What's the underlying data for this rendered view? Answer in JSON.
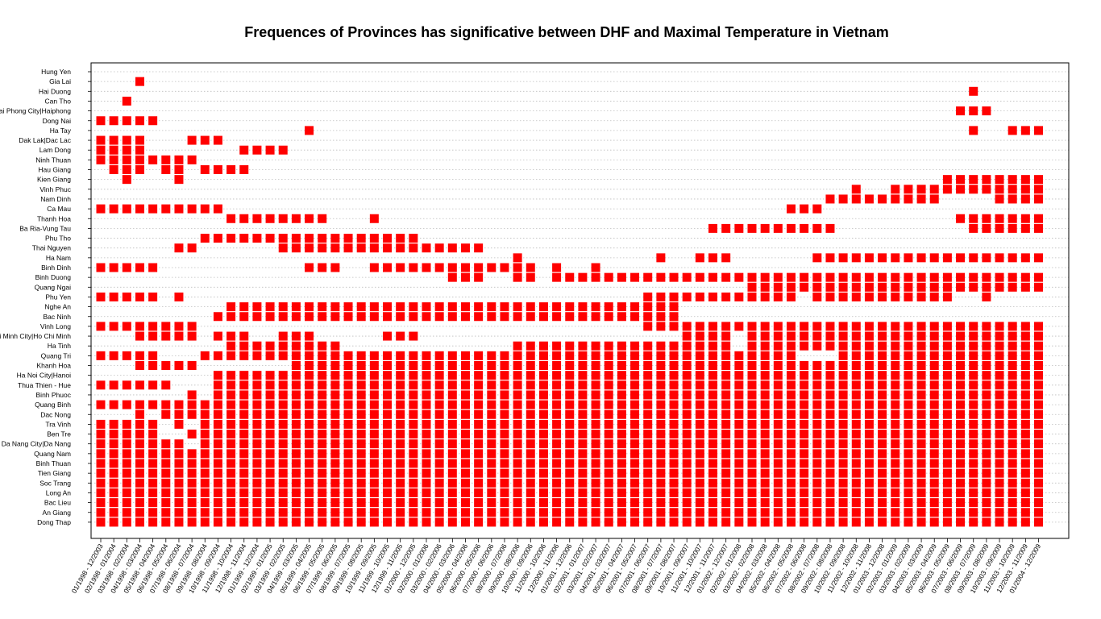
{
  "chart_data": {
    "type": "heatmap",
    "title": "Frequences of Provinces has significative between DHF and Maximal Temperature in Vietnam",
    "xlabel": "",
    "ylabel": "",
    "grid": true,
    "colors": {
      "mark": "#ff0000",
      "grid": "#bdbdbd",
      "axis": "#000000"
    },
    "y_categories": [
      "Hung Yen",
      "Gia Lai",
      "Hai Duong",
      "Can Tho",
      "Hai Phong City|Haiphong",
      "Dong Nai",
      "Ha Tay",
      "Dak Lak|Dac Lac",
      "Lam Dong",
      "Ninh Thuan",
      "Hau Giang",
      "Kien Giang",
      "Vinh Phuc",
      "Nam Dinh",
      "Ca Mau",
      "Thanh Hoa",
      "Ba Ria-Vung Tau",
      "Phu Tho",
      "Thai Nguyen",
      "Ha Nam",
      "Binh Dinh",
      "Binh Duong",
      "Quang Ngai",
      "Phu Yen",
      "Nghe An",
      "Bac Ninh",
      "Vinh Long",
      "Ho Chi Minh City|Ho Chi Minh",
      "Ha Tinh",
      "Quang Tri",
      "Khanh Hoa",
      "Ha Noi City|Hanoi",
      "Thua Thien - Hue",
      "Binh Phuoc",
      "Quang Binh",
      "Dac Nong",
      "Tra Vinh",
      "Ben Tre",
      "Da Nang City|Da Nang",
      "Quang Nam",
      "Binh Thuan",
      "Tien Giang",
      "Soc Trang",
      "Long An",
      "Bac Lieu",
      "An Giang",
      "Dong Thap"
    ],
    "x_categories": [
      "01/1998 - 12/2003",
      "02/1998 - 01/2004",
      "03/1998 - 02/2004",
      "04/1998 - 03/2004",
      "05/1998 - 04/2004",
      "06/1998 - 05/2004",
      "07/1998 - 06/2004",
      "08/1998 - 07/2004",
      "09/1998 - 08/2004",
      "10/1998 - 09/2004",
      "11/1998 - 10/2004",
      "12/1998 - 11/2004",
      "01/1999 - 12/2004",
      "02/1999 - 01/2005",
      "03/1999 - 02/2005",
      "04/1999 - 03/2005",
      "05/1999 - 04/2005",
      "06/1999 - 05/2005",
      "07/1999 - 06/2005",
      "08/1999 - 07/2005",
      "09/1999 - 08/2005",
      "10/1999 - 09/2005",
      "11/1999 - 10/2005",
      "12/1999 - 11/2005",
      "01/2000 - 12/2005",
      "02/2000 - 01/2006",
      "03/2000 - 02/2006",
      "04/2000 - 03/2006",
      "05/2000 - 04/2006",
      "06/2000 - 05/2006",
      "07/2000 - 06/2006",
      "08/2000 - 07/2006",
      "09/2000 - 08/2006",
      "10/2000 - 09/2006",
      "11/2000 - 10/2006",
      "12/2000 - 11/2006",
      "01/2001 - 12/2006",
      "02/2001 - 01/2007",
      "03/2001 - 02/2007",
      "04/2001 - 03/2007",
      "05/2001 - 04/2007",
      "06/2001 - 05/2007",
      "07/2001 - 06/2007",
      "08/2001 - 07/2007",
      "09/2001 - 08/2007",
      "10/2001 - 09/2007",
      "11/2001 - 10/2007",
      "12/2001 - 11/2007",
      "01/2002 - 12/2007",
      "02/2002 - 01/2008",
      "03/2002 - 02/2008",
      "04/2002 - 03/2008",
      "05/2002 - 04/2008",
      "06/2002 - 05/2008",
      "07/2002 - 06/2008",
      "08/2002 - 07/2008",
      "09/2002 - 08/2008",
      "10/2002 - 09/2008",
      "11/2002 - 10/2008",
      "12/2002 - 11/2008",
      "01/2003 - 12/2008",
      "02/2003 - 01/2009",
      "03/2003 - 02/2009",
      "04/2003 - 03/2009",
      "05/2003 - 04/2009",
      "06/2003 - 05/2009",
      "07/2003 - 06/2009",
      "08/2003 - 07/2009",
      "09/2003 - 08/2009",
      "10/2003 - 09/2009",
      "11/2003 - 10/2009",
      "12/2003 - 11/2009",
      "01/2004 - 12/2009"
    ],
    "cells": {
      "Gia Lai": [
        [
          3,
          3
        ]
      ],
      "Hai Duong": [
        [
          67,
          67
        ]
      ],
      "Can Tho": [
        [
          2,
          2
        ]
      ],
      "Hai Phong City|Haiphong": [
        [
          66,
          68
        ]
      ],
      "Dong Nai": [
        [
          0,
          4
        ]
      ],
      "Ha Tay": [
        [
          16,
          16
        ],
        [
          67,
          67
        ],
        [
          70,
          72
        ]
      ],
      "Dak Lak|Dac Lac": [
        [
          0,
          3
        ],
        [
          7,
          9
        ]
      ],
      "Lam Dong": [
        [
          0,
          3
        ],
        [
          11,
          14
        ]
      ],
      "Ninh Thuan": [
        [
          0,
          7
        ]
      ],
      "Hau Giang": [
        [
          1,
          3
        ],
        [
          5,
          6
        ],
        [
          8,
          11
        ]
      ],
      "Kien Giang": [
        [
          2,
          2
        ],
        [
          6,
          6
        ],
        [
          65,
          72
        ]
      ],
      "Vinh Phuc": [
        [
          58,
          58
        ],
        [
          61,
          64
        ],
        [
          65,
          72
        ]
      ],
      "Nam Dinh": [
        [
          56,
          64
        ],
        [
          69,
          72
        ]
      ],
      "Ca Mau": [
        [
          0,
          9
        ],
        [
          53,
          55
        ]
      ],
      "Thanh Hoa": [
        [
          10,
          17
        ],
        [
          21,
          21
        ],
        [
          66,
          66
        ],
        [
          67,
          72
        ]
      ],
      "Ba Ria-Vung Tau": [
        [
          47,
          56
        ],
        [
          67,
          72
        ]
      ],
      "Phu Tho": [
        [
          8,
          24
        ]
      ],
      "Thai Nguyen": [
        [
          6,
          7
        ],
        [
          14,
          29
        ]
      ],
      "Ha Nam": [
        [
          32,
          32
        ],
        [
          43,
          43
        ],
        [
          46,
          48
        ],
        [
          55,
          72
        ]
      ],
      "Binh Dinh": [
        [
          0,
          4
        ],
        [
          16,
          18
        ],
        [
          21,
          33
        ],
        [
          35,
          35
        ],
        [
          38,
          38
        ]
      ],
      "Binh Duong": [
        [
          27,
          29
        ],
        [
          32,
          33
        ],
        [
          35,
          72
        ]
      ],
      "Quang Ngai": [
        [
          50,
          53
        ],
        [
          54,
          72
        ]
      ],
      "Phu Yen": [
        [
          0,
          4
        ],
        [
          6,
          6
        ],
        [
          42,
          44
        ],
        [
          45,
          53
        ],
        [
          55,
          65
        ],
        [
          68,
          68
        ]
      ],
      "Nghe An": [
        [
          10,
          44
        ]
      ],
      "Bac Ninh": [
        [
          9,
          44
        ]
      ],
      "Vinh Long": [
        [
          0,
          7
        ],
        [
          42,
          44
        ],
        [
          45,
          72
        ]
      ],
      "Ho Chi Minh City|Ho Chi Minh": [
        [
          3,
          7
        ],
        [
          9,
          11
        ],
        [
          14,
          16
        ],
        [
          22,
          24
        ],
        [
          45,
          48
        ],
        [
          50,
          72
        ]
      ],
      "Ha Tinh": [
        [
          10,
          18
        ],
        [
          32,
          48
        ],
        [
          50,
          72
        ]
      ],
      "Quang Tri": [
        [
          0,
          4
        ],
        [
          8,
          53
        ],
        [
          57,
          72
        ]
      ],
      "Khanh Hoa": [
        [
          3,
          7
        ],
        [
          15,
          72
        ]
      ],
      "Ha Noi City|Hanoi": [
        [
          9,
          72
        ]
      ],
      "Thua Thien - Hue": [
        [
          0,
          5
        ],
        [
          9,
          72
        ]
      ],
      "Binh Phuoc": [
        [
          7,
          7
        ],
        [
          9,
          72
        ]
      ],
      "Quang Binh": [
        [
          0,
          72
        ]
      ],
      "Dac Nong": [
        [
          3,
          3
        ],
        [
          5,
          7
        ],
        [
          8,
          72
        ]
      ],
      "Tra Vinh": [
        [
          0,
          4
        ],
        [
          6,
          6
        ],
        [
          8,
          72
        ]
      ],
      "Ben Tre": [
        [
          0,
          4
        ],
        [
          7,
          7
        ],
        [
          8,
          72
        ]
      ],
      "Da Nang City|Da Nang": [
        [
          0,
          4
        ],
        [
          5,
          6
        ],
        [
          8,
          72
        ]
      ],
      "Quang Nam": [
        [
          0,
          72
        ]
      ],
      "Binh Thuan": [
        [
          0,
          72
        ]
      ],
      "Tien Giang": [
        [
          0,
          72
        ]
      ],
      "Soc Trang": [
        [
          0,
          72
        ]
      ],
      "Long An": [
        [
          0,
          72
        ]
      ],
      "Bac Lieu": [
        [
          0,
          72
        ]
      ],
      "An Giang": [
        [
          0,
          72
        ]
      ],
      "Dong Thap": [
        [
          0,
          72
        ]
      ]
    }
  }
}
